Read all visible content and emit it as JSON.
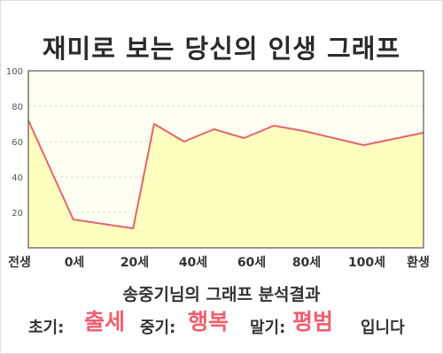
{
  "title": "재미로 보는 당신의 인생 그래프",
  "subtitle": "송중기님의 그래프 분석결과",
  "result": {
    "early_label": "초기:",
    "early_value": "출세",
    "mid_label": "중기:",
    "mid_value": "행복",
    "late_label": "말기:",
    "late_value": "평범",
    "ending": "입니다"
  },
  "colors": {
    "line": "#e0646a",
    "fill": "#ffffc0",
    "plot_bg": "#fffff2",
    "grid": "#d8d8d8",
    "accent": "#f05f70"
  },
  "chart_data": {
    "type": "area",
    "title": "재미로 보는 당신의 인생 그래프",
    "xlabel": "",
    "ylabel": "",
    "ylim": [
      0,
      100
    ],
    "yticks": [
      20,
      40,
      60,
      80,
      100
    ],
    "grid": true,
    "x_tick_labels": [
      "전생",
      "0세",
      "20세",
      "40세",
      "60세",
      "80세",
      "100세",
      "환생"
    ],
    "points": [
      {
        "x": -15,
        "y": 72
      },
      {
        "x": 0,
        "y": 16
      },
      {
        "x": 20,
        "y": 11
      },
      {
        "x": 27,
        "y": 70
      },
      {
        "x": 37,
        "y": 60
      },
      {
        "x": 47,
        "y": 67
      },
      {
        "x": 57,
        "y": 62
      },
      {
        "x": 67,
        "y": 69
      },
      {
        "x": 77,
        "y": 66
      },
      {
        "x": 97,
        "y": 58
      },
      {
        "x": 117,
        "y": 65
      }
    ]
  }
}
